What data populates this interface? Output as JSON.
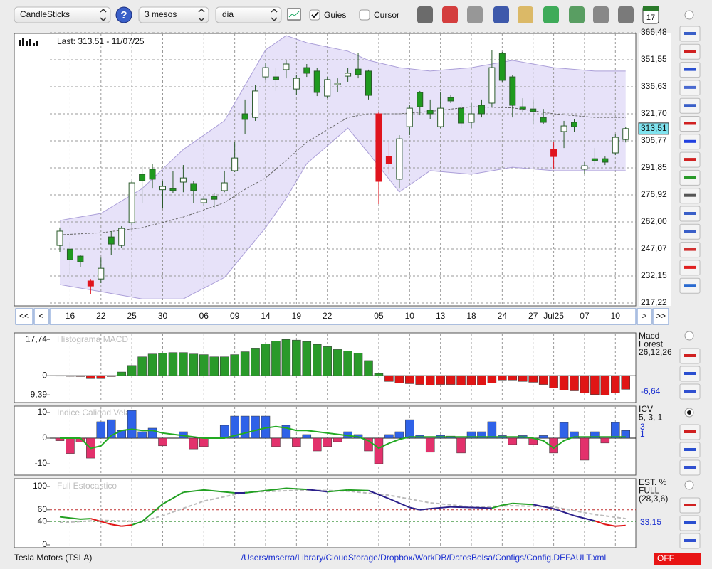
{
  "toolbar": {
    "selects": [
      "CandleSticks",
      "3 mesos",
      "dia"
    ],
    "checkboxes": [
      {
        "label": "Guies",
        "checked": true
      },
      {
        "label": "Cursor",
        "checked": false
      }
    ],
    "calendar_icon": "17"
  },
  "chart_data": [
    {
      "type": "candlestick",
      "title": "Last: 313.51 - 11/07/25",
      "ylim": [
        215.65,
        366.09
      ],
      "yticks": [
        {
          "value": 366.48,
          "label": "366,48"
        },
        {
          "value": 351.55,
          "label": "351,55"
        },
        {
          "value": 336.63,
          "label": "336,63"
        },
        {
          "value": 321.7,
          "label": "321,70"
        },
        {
          "value": 306.77,
          "label": "306,77"
        },
        {
          "value": 291.85,
          "label": "291,85"
        },
        {
          "value": 276.92,
          "label": "276,92"
        },
        {
          "value": 262.0,
          "label": "262,00"
        },
        {
          "value": 247.07,
          "label": "247,07"
        },
        {
          "value": 232.15,
          "label": "232,15"
        },
        {
          "value": 217.22,
          "label": "217,22"
        }
      ],
      "x_labels": [
        {
          "index": 1,
          "label": "16"
        },
        {
          "index": 4,
          "label": "22"
        },
        {
          "index": 7,
          "label": "25"
        },
        {
          "index": 10,
          "label": "30"
        },
        {
          "index": 14,
          "label": "06"
        },
        {
          "index": 17,
          "label": "09"
        },
        {
          "index": 20,
          "label": "14"
        },
        {
          "index": 23,
          "label": "19"
        },
        {
          "index": 26,
          "label": "22"
        },
        {
          "index": 31,
          "label": "05"
        },
        {
          "index": 34,
          "label": "10"
        },
        {
          "index": 37,
          "label": "13"
        },
        {
          "index": 40,
          "label": "18"
        },
        {
          "index": 43,
          "label": "24"
        },
        {
          "index": 46,
          "label": "27"
        },
        {
          "index": 48,
          "label": "Jul25"
        },
        {
          "index": 51,
          "label": "07"
        },
        {
          "index": 54,
          "label": "10"
        }
      ],
      "nav_buttons": [
        "<<",
        "<",
        ">",
        ">>"
      ],
      "colors": {
        "up": "#ffffff",
        "down": "#1f9a1f",
        "outline": "#2a5a2a"
      },
      "grid": true,
      "candles": [
        {
          "o": 249.0,
          "h": 258.9,
          "l": 245.1,
          "c": 256.9
        },
        {
          "o": 247.0,
          "h": 251.0,
          "l": 233.3,
          "c": 241.1
        },
        {
          "o": 243.1,
          "h": 243.9,
          "l": 237.2,
          "c": 240.0
        },
        {
          "o": 229.4,
          "h": 230.5,
          "l": 222.3,
          "c": 226.6,
          "color": "#e0141e"
        },
        {
          "o": 230.5,
          "h": 242.3,
          "l": 228.2,
          "c": 236.4
        },
        {
          "o": 253.7,
          "h": 256.9,
          "l": 243.9,
          "c": 249.8
        },
        {
          "o": 249.0,
          "h": 259.6,
          "l": 247.8,
          "c": 258.4
        },
        {
          "o": 261.6,
          "h": 284.4,
          "l": 260.4,
          "c": 283.6
        },
        {
          "o": 288.3,
          "h": 293.0,
          "l": 272.6,
          "c": 284.8
        },
        {
          "o": 291.1,
          "h": 294.2,
          "l": 280.4,
          "c": 285.6
        },
        {
          "o": 279.8,
          "h": 284.4,
          "l": 269.8,
          "c": 281.6
        },
        {
          "o": 280.4,
          "h": 290.0,
          "l": 278.0,
          "c": 279.3
        },
        {
          "o": 284.0,
          "h": 293.4,
          "l": 278.4,
          "c": 286.3
        },
        {
          "o": 283.2,
          "h": 284.4,
          "l": 272.6,
          "c": 279.3
        },
        {
          "o": 272.6,
          "h": 276.5,
          "l": 270.6,
          "c": 274.5
        },
        {
          "o": 276.1,
          "h": 277.7,
          "l": 269.8,
          "c": 274.5
        },
        {
          "o": 279.3,
          "h": 290.3,
          "l": 278.4,
          "c": 283.6
        },
        {
          "o": 290.3,
          "h": 306.0,
          "l": 289.5,
          "c": 297.3
        },
        {
          "o": 321.7,
          "h": 329.6,
          "l": 310.7,
          "c": 318.6
        },
        {
          "o": 319.7,
          "h": 337.4,
          "l": 317.8,
          "c": 334.3
        },
        {
          "o": 342.1,
          "h": 350.0,
          "l": 340.6,
          "c": 347.2
        },
        {
          "o": 342.1,
          "h": 347.2,
          "l": 334.3,
          "c": 340.6
        },
        {
          "o": 346.1,
          "h": 351.2,
          "l": 341.3,
          "c": 349.2
        },
        {
          "o": 335.4,
          "h": 343.3,
          "l": 332.3,
          "c": 341.3
        },
        {
          "o": 347.2,
          "h": 349.2,
          "l": 342.1,
          "c": 344.1
        },
        {
          "o": 345.3,
          "h": 347.2,
          "l": 331.5,
          "c": 333.5
        },
        {
          "o": 331.5,
          "h": 342.1,
          "l": 330.3,
          "c": 340.6
        },
        {
          "o": 337.8,
          "h": 341.3,
          "l": 333.5,
          "c": 338.6
        },
        {
          "o": 342.5,
          "h": 347.2,
          "l": 339.4,
          "c": 344.1
        },
        {
          "o": 346.4,
          "h": 355.1,
          "l": 341.3,
          "c": 343.3
        },
        {
          "o": 345.3,
          "h": 346.1,
          "l": 329.6,
          "c": 331.9
        },
        {
          "o": 321.7,
          "h": 322.5,
          "l": 271.8,
          "c": 284.4,
          "color": "#e0141e"
        },
        {
          "o": 298.1,
          "h": 306.0,
          "l": 288.3,
          "c": 294.2,
          "color": "#e0141e"
        },
        {
          "o": 285.6,
          "h": 309.9,
          "l": 280.4,
          "c": 307.9
        },
        {
          "o": 314.6,
          "h": 326.4,
          "l": 309.9,
          "c": 324.8
        },
        {
          "o": 333.5,
          "h": 334.3,
          "l": 320.9,
          "c": 325.6
        },
        {
          "o": 323.7,
          "h": 329.6,
          "l": 318.6,
          "c": 321.7
        },
        {
          "o": 314.6,
          "h": 333.5,
          "l": 313.8,
          "c": 324.8
        },
        {
          "o": 330.7,
          "h": 332.3,
          "l": 327.6,
          "c": 328.8
        },
        {
          "o": 324.8,
          "h": 327.6,
          "l": 313.8,
          "c": 316.6
        },
        {
          "o": 317.0,
          "h": 327.6,
          "l": 313.8,
          "c": 321.7
        },
        {
          "o": 326.4,
          "h": 329.6,
          "l": 319.7,
          "c": 321.7
        },
        {
          "o": 327.6,
          "h": 357.0,
          "l": 325.6,
          "c": 347.2
        },
        {
          "o": 355.1,
          "h": 355.9,
          "l": 339.4,
          "c": 340.2
        },
        {
          "o": 342.1,
          "h": 343.3,
          "l": 319.7,
          "c": 326.4
        },
        {
          "o": 325.6,
          "h": 330.3,
          "l": 322.9,
          "c": 324.4
        },
        {
          "o": 324.4,
          "h": 329.6,
          "l": 315.8,
          "c": 322.9
        },
        {
          "o": 319.7,
          "h": 324.4,
          "l": 315.8,
          "c": 317.0
        },
        {
          "o": 302.0,
          "h": 306.0,
          "l": 291.1,
          "c": 298.1,
          "color": "#e0141e"
        },
        {
          "o": 311.9,
          "h": 317.8,
          "l": 302.8,
          "c": 315.0
        },
        {
          "o": 317.0,
          "h": 318.6,
          "l": 311.9,
          "c": 314.6
        },
        {
          "o": 291.1,
          "h": 295.0,
          "l": 288.3,
          "c": 293.0
        },
        {
          "o": 296.9,
          "h": 302.8,
          "l": 293.4,
          "c": 295.8
        },
        {
          "o": 296.9,
          "h": 298.1,
          "l": 293.4,
          "c": 295.0
        },
        {
          "o": 300.1,
          "h": 310.7,
          "l": 298.9,
          "c": 308.7
        },
        {
          "o": 307.5,
          "h": 314.6,
          "l": 305.9,
          "c": 313.51
        }
      ],
      "bands": {
        "index": [
          0,
          4,
          8,
          12,
          16,
          18,
          20,
          22,
          24,
          28,
          30,
          33,
          36,
          40,
          44,
          48,
          52,
          55
        ],
        "upper": [
          262.8,
          266.7,
          280.4,
          302.0,
          317.8,
          337.4,
          357.0,
          364.9,
          361.0,
          356.3,
          351.2,
          347.2,
          345.3,
          347.2,
          351.2,
          347.2,
          345.3,
          345.3
        ],
        "lower": [
          227.4,
          223.5,
          219.5,
          219.5,
          231.3,
          245,
          258.8,
          275,
          294.2,
          313.8,
          300,
          278.5,
          290.3,
          288.3,
          292.2,
          290.3,
          290.3,
          290.3
        ],
        "middle": [
          254.9,
          256,
          258.8,
          264.7,
          272.6,
          280,
          286.3,
          296,
          306.0,
          319.7,
          321.7,
          321.7,
          323,
          325.6,
          325,
          321.7,
          319.7,
          319.7
        ]
      },
      "last": {
        "value": 313.51,
        "label": "313,51"
      }
    },
    {
      "type": "bar",
      "title": "Histograma MACD",
      "legend": [
        "Macd",
        "Forest",
        "26,12,26"
      ],
      "last_label": "-6,64",
      "ylim": [
        -13.13,
        20.93
      ],
      "yticks": [
        {
          "value": 17.74,
          "label": "17,74"
        },
        0,
        {
          "value": -9.39,
          "label": "-9,39"
        }
      ],
      "colors": {
        "positive": "#2a9a2a",
        "negative": "#e01515"
      },
      "values": [
        -0.2,
        -0.3,
        -0.4,
        -1.4,
        -1.4,
        -0.4,
        1.8,
        5.0,
        9.2,
        10.6,
        11.0,
        11.3,
        11.3,
        10.6,
        10.3,
        9.2,
        9.2,
        10.3,
        11.7,
        13.5,
        15.6,
        17.0,
        17.7,
        17.4,
        16.7,
        15.3,
        14.2,
        12.8,
        12.1,
        11.0,
        7.4,
        1.1,
        -2.8,
        -3.5,
        -3.9,
        -4.3,
        -4.6,
        -4.3,
        -4.3,
        -4.6,
        -4.6,
        -4.6,
        -3.5,
        -2.1,
        -2.1,
        -2.8,
        -3.2,
        -4.3,
        -6.0,
        -7.1,
        -7.4,
        -8.5,
        -9.2,
        -9.4,
        -8.5,
        -6.64
      ]
    },
    {
      "type": "bar_line",
      "title": "Indice Calidad Vela",
      "legend": [
        "ICV",
        "5, 3, 1"
      ],
      "legend_values": [
        "3",
        "1"
      ],
      "ylim": [
        -14.44,
        12.5
      ],
      "yticks": [
        10,
        0,
        -10
      ],
      "colors": {
        "positive": "#2f62e8",
        "negative": "#e3316c",
        "line": "#22aa22"
      },
      "values": [
        -1,
        -6,
        -1.5,
        -7.8,
        6.4,
        7.2,
        3,
        10.8,
        2.5,
        3.9,
        -3,
        0,
        2.5,
        -4.2,
        -3.3,
        0,
        5,
        8.6,
        8.6,
        8.6,
        8.6,
        -3.3,
        5,
        -3.3,
        1.4,
        -5,
        -3.3,
        -1.4,
        2.5,
        1.4,
        -5,
        -10,
        1.4,
        2.5,
        7.2,
        1.1,
        -5.5,
        1.1,
        0.8,
        -5.8,
        2.5,
        2.5,
        6.4,
        1,
        -2.5,
        1,
        -2.5,
        1,
        -5.8,
        6.1,
        2.5,
        -8.6,
        2.5,
        -1.9,
        6.1,
        3
      ],
      "line": [
        0,
        0,
        0,
        -4,
        -3,
        1,
        3,
        3.5,
        3,
        3,
        2,
        1.5,
        1,
        0.5,
        0,
        0,
        0,
        1,
        2,
        3,
        4,
        4.5,
        4,
        3,
        3,
        2.5,
        2,
        1.5,
        1,
        0.5,
        -1,
        -3.9,
        -2,
        -0.5,
        0.5,
        0.5,
        0.5,
        0.5,
        0.5,
        0.5,
        0.5,
        0.5,
        0.5,
        0.5,
        0.5,
        0.5,
        0,
        -1,
        -3.9,
        -1,
        0.5,
        0.5,
        0.5,
        0.5,
        0.5,
        0.5
      ]
    },
    {
      "type": "line",
      "title": "Full Estocastico",
      "legend": [
        "EST. %",
        "FULL",
        "(28,3,6)"
      ],
      "last_label": "33,15",
      "ylim": [
        -4.9,
        113.4
      ],
      "yticks": [
        100,
        60,
        40,
        0
      ],
      "levels": [
        {
          "value": 60,
          "color": "#c03030"
        },
        {
          "value": 40,
          "color": "#2a8a2a"
        }
      ],
      "colors": {
        "above": "#22a022",
        "falling": "#2a1f8a",
        "low": "#e01515",
        "signal": "#bbbbbb"
      },
      "k": {
        "index": [
          0,
          2,
          3,
          5,
          6,
          7,
          8,
          10,
          12,
          14,
          17,
          18,
          20,
          22,
          24,
          26,
          28,
          30,
          32,
          34,
          35,
          36,
          38,
          40,
          42,
          43,
          44,
          46,
          48,
          50,
          52,
          53,
          54,
          55
        ],
        "values": [
          48,
          44,
          45,
          35,
          32,
          34,
          40,
          70,
          90,
          94,
          89,
          89,
          93,
          97,
          95,
          91,
          94,
          93,
          79,
          64,
          60,
          62,
          65,
          64,
          63,
          68,
          71,
          69,
          62,
          50,
          41,
          35,
          32,
          33.15
        ]
      },
      "d": {
        "index": [
          0,
          4,
          8,
          10,
          14,
          18,
          24,
          28,
          32,
          36,
          40,
          44,
          48,
          52,
          55
        ],
        "values": [
          38,
          42,
          40,
          50,
          75,
          90,
          94,
          92,
          85,
          72,
          65,
          67,
          65,
          52,
          45
        ]
      }
    }
  ],
  "footer": {
    "symbol": "Tesla Motors (TSLA)",
    "path": "/Users/mserra/Library/CloudStorage/Dropbox/WorkDB/DatosBolsa/Configs/Config.DEFAULT.xml",
    "status": "OFF"
  }
}
